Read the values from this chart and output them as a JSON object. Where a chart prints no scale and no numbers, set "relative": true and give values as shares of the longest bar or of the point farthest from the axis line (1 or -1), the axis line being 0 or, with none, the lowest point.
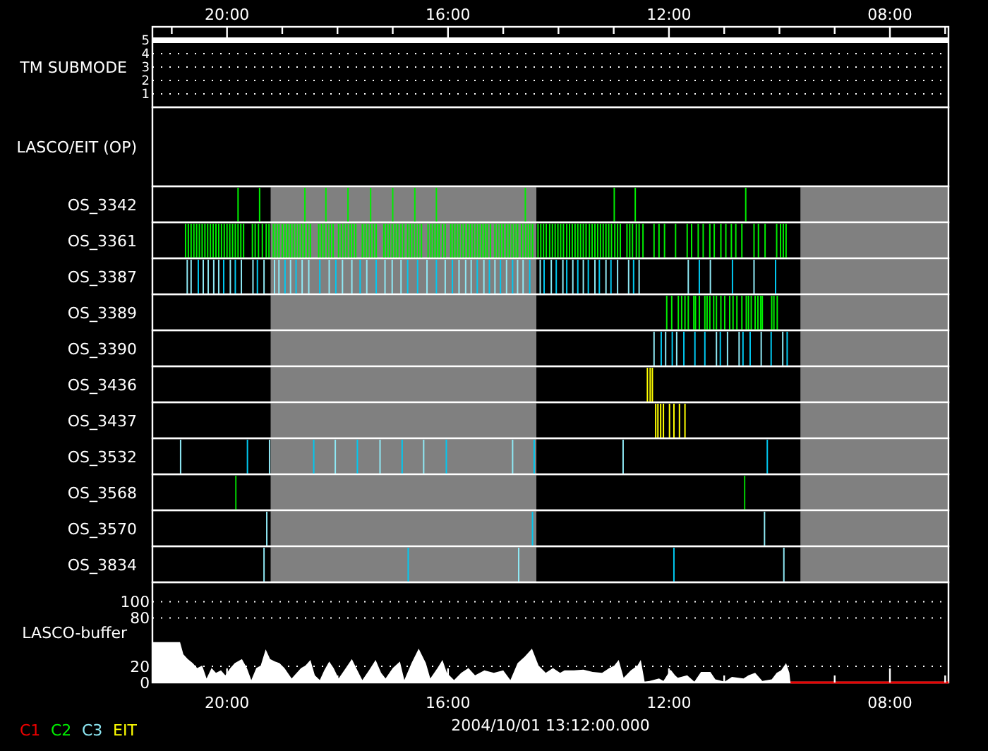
{
  "chart_data": [
    {
      "type": "line",
      "ylabel": "TM SUBMODE",
      "xlim": [
        21.35,
        6.94
      ],
      "xticks": [
        {
          "value": 21,
          "label": null
        },
        {
          "value": 20,
          "label": "20:00"
        },
        {
          "value": 19,
          "label": null
        },
        {
          "value": 18,
          "label": null
        },
        {
          "value": 17,
          "label": null
        },
        {
          "value": 16,
          "label": "16:00"
        },
        {
          "value": 15,
          "label": null
        },
        {
          "value": 14,
          "label": null
        },
        {
          "value": 13,
          "label": null
        },
        {
          "value": 12,
          "label": "12:00"
        },
        {
          "value": 11,
          "label": null
        },
        {
          "value": 10,
          "label": null
        },
        {
          "value": 9,
          "label": null
        },
        {
          "value": 8,
          "label": "08:00"
        },
        {
          "value": 7,
          "label": null
        }
      ],
      "ylim": [
        0,
        6
      ],
      "yticks": [
        1,
        2,
        3,
        4,
        5
      ],
      "grid": "y",
      "series": [
        {
          "color": "#ffffff",
          "x": [
            21.35,
            6.94
          ],
          "values": [
            5,
            5
          ]
        }
      ]
    },
    {
      "type": "other",
      "ylabel": "LASCO/EIT (OP)"
    },
    {
      "type": "bar",
      "ylabel": "OS_3342",
      "relative": true,
      "xlim": [
        21.35,
        6.94
      ],
      "bands": [
        {
          "axis": "x",
          "from": 19.21,
          "to": 14.4,
          "color": "#808080"
        },
        {
          "axis": "x",
          "from": 9.62,
          "to": 6.94,
          "color": "#808080"
        }
      ],
      "series": [
        {
          "color": "#00ee00",
          "x": [
            19.8,
            19.41,
            18.59,
            18.21,
            17.81,
            17.4,
            17.0,
            16.6,
            16.21,
            14.6,
            12.99,
            12.61,
            10.61
          ],
          "values": [
            1,
            1,
            1,
            1,
            1,
            1,
            1,
            1,
            1,
            1,
            1,
            1,
            1
          ]
        }
      ]
    },
    {
      "type": "bar",
      "ylabel": "OS_3361",
      "relative": true,
      "xlim": [
        21.35,
        6.94
      ],
      "bands": [
        {
          "axis": "x",
          "from": 19.21,
          "to": 14.4,
          "color": "#808080"
        },
        {
          "axis": "x",
          "from": 9.62,
          "to": 6.94,
          "color": "#808080"
        }
      ],
      "series": [
        {
          "color": "#00ee00",
          "x": [
            20.75,
            20.7,
            20.65,
            20.6,
            20.55,
            20.5,
            20.45,
            20.4,
            20.35,
            20.3,
            20.25,
            20.2,
            20.15,
            20.1,
            20.05,
            20.0,
            19.95,
            19.9,
            19.85,
            19.8,
            19.75,
            19.7,
            19.54,
            19.49,
            19.43,
            19.36,
            19.29,
            19.24,
            19.16,
            19.11,
            19.06,
            19.0,
            18.95,
            18.9,
            18.85,
            18.8,
            18.75,
            18.7,
            18.65,
            18.6,
            18.54,
            18.49,
            18.34,
            18.29,
            18.24,
            18.18,
            18.13,
            18.08,
            17.98,
            17.93,
            17.88,
            17.83,
            17.77,
            17.72,
            17.67,
            17.55,
            17.5,
            17.45,
            17.4,
            17.35,
            17.3,
            17.16,
            17.11,
            17.06,
            17.01,
            16.96,
            16.91,
            16.85,
            16.8,
            16.73,
            16.68,
            16.63,
            16.58,
            16.53,
            16.48,
            16.36,
            16.31,
            16.26,
            16.21,
            16.16,
            16.1,
            16.05
          ],
          "values": [
            1,
            1,
            1,
            1,
            1,
            1,
            1,
            1,
            1,
            1,
            1,
            1,
            1,
            1,
            1,
            1,
            1,
            1,
            1,
            1,
            1,
            1,
            1,
            1,
            1,
            1,
            1,
            1,
            1,
            1,
            1,
            1,
            1,
            1,
            1,
            1,
            1,
            1,
            1,
            1,
            1,
            1,
            1,
            1,
            1,
            1,
            1,
            1,
            1,
            1,
            1,
            1,
            1,
            1,
            1,
            1,
            1,
            1,
            1,
            1,
            1,
            1,
            1,
            1,
            1,
            1,
            1,
            1,
            1,
            1,
            1,
            1,
            1,
            1,
            1,
            1,
            1,
            1,
            1,
            1,
            1,
            1
          ]
        },
        {
          "color": "#00ee00",
          "x": [
            15.95,
            15.9,
            15.85,
            15.8,
            15.75,
            15.7,
            15.64,
            15.59,
            15.54,
            15.49,
            15.44,
            15.39,
            15.34,
            15.29,
            15.23,
            15.15,
            15.1,
            15.05,
            15.0,
            14.94,
            14.89,
            14.84,
            14.79,
            14.74,
            14.67,
            14.62,
            14.57,
            14.52,
            14.47,
            14.37,
            14.32,
            14.27,
            14.22,
            14.16,
            14.11,
            14.06,
            14.01,
            13.96,
            13.91,
            13.85,
            13.8,
            13.75,
            13.7,
            13.65,
            13.6,
            13.55,
            13.5,
            13.44,
            13.39,
            13.34,
            13.29,
            13.24,
            13.19,
            13.14,
            13.09,
            13.04,
            12.98,
            12.93,
            12.88,
            12.76,
            12.71,
            12.66,
            12.59,
            12.54,
            12.47
          ],
          "values": [
            1,
            1,
            1,
            1,
            1,
            1,
            1,
            1,
            1,
            1,
            1,
            1,
            1,
            1,
            1,
            1,
            1,
            1,
            1,
            1,
            1,
            1,
            1,
            1,
            1,
            1,
            1,
            1,
            1,
            1,
            1,
            1,
            1,
            1,
            1,
            1,
            1,
            1,
            1,
            1,
            1,
            1,
            1,
            1,
            1,
            1,
            1,
            1,
            1,
            1,
            1,
            1,
            1,
            1,
            1,
            1,
            1,
            1,
            1,
            1,
            1,
            1,
            1,
            1,
            1
          ]
        },
        {
          "color": "#00ee00",
          "x": [
            12.27,
            12.18,
            12.08,
            11.88,
            11.67,
            11.59,
            11.47,
            11.38,
            11.26,
            11.18,
            11.06,
            10.97,
            10.87,
            10.79,
            10.68,
            10.46,
            10.38,
            10.26,
            10.05,
            9.98,
            9.93,
            9.88
          ],
          "values": [
            1,
            1,
            1,
            1,
            1,
            1,
            1,
            1,
            1,
            1,
            1,
            1,
            1,
            1,
            1,
            1,
            1,
            1,
            1,
            1,
            1,
            1
          ]
        }
      ]
    },
    {
      "type": "bar",
      "ylabel": "OS_3387",
      "relative": true,
      "xlim": [
        21.35,
        6.94
      ],
      "bands": [
        {
          "axis": "x",
          "from": 19.21,
          "to": 14.4,
          "color": "#808080"
        },
        {
          "axis": "x",
          "from": 9.62,
          "to": 6.94,
          "color": "#808080"
        }
      ],
      "series": [
        {
          "color": "#8ee8f4",
          "x": [
            20.72,
            20.65,
            20.43,
            20.34,
            20.24,
            20.15,
            19.94,
            19.74,
            19.53,
            19.33,
            19.14,
            19.06,
            18.85,
            18.64,
            18.52,
            18.15,
            17.91,
            17.74,
            17.47,
            17.14,
            17.01,
            16.85,
            16.38,
            16.05,
            15.8,
            15.68,
            15.58,
            15.35,
            15.15,
            14.94,
            14.74,
            14.64,
            14.33,
            14.13,
            13.92,
            13.74,
            13.55,
            13.34,
            13.14,
            12.93,
            12.73,
            12.54,
            11.65,
            11.25,
            10.46
          ],
          "values": [
            1,
            1,
            1,
            1,
            1,
            1,
            1,
            1,
            1,
            1,
            1,
            1,
            1,
            1,
            1,
            1,
            1,
            1,
            1,
            1,
            1,
            1,
            1,
            1,
            1,
            1,
            1,
            1,
            1,
            1,
            1,
            1,
            1,
            1,
            1,
            1,
            1,
            1,
            1,
            1,
            1,
            1,
            1,
            1,
            1
          ]
        },
        {
          "color": "#00c8f0",
          "x": [
            20.52,
            20.06,
            19.85,
            19.45,
            18.95,
            18.75,
            18.32,
            18.03,
            17.59,
            17.3,
            16.73,
            16.55,
            16.21,
            15.92,
            15.47,
            15.25,
            15.05,
            14.83,
            14.52,
            14.26,
            14.04,
            13.85,
            13.65,
            13.46,
            13.26,
            13.05,
            12.64,
            11.45,
            10.85,
            10.07
          ],
          "values": [
            1,
            1,
            1,
            1,
            1,
            1,
            1,
            1,
            1,
            1,
            1,
            1,
            1,
            1,
            1,
            1,
            1,
            1,
            1,
            1,
            1,
            1,
            1,
            1,
            1,
            1,
            1,
            1,
            1,
            1
          ]
        }
      ]
    },
    {
      "type": "bar",
      "ylabel": "OS_3389",
      "relative": true,
      "xlim": [
        21.35,
        6.94
      ],
      "bands": [
        {
          "axis": "x",
          "from": 19.21,
          "to": 14.4,
          "color": "#808080"
        },
        {
          "axis": "x",
          "from": 9.62,
          "to": 6.94,
          "color": "#808080"
        }
      ],
      "series": [
        {
          "color": "#00ee00",
          "x": [
            12.04,
            11.95,
            11.83,
            11.77,
            11.71,
            11.65,
            11.55,
            11.52,
            11.45,
            11.35,
            11.31,
            11.26,
            11.19,
            11.14,
            11.06,
            10.99,
            10.9,
            10.84,
            10.77,
            10.68,
            10.6,
            10.56,
            10.51,
            10.44,
            10.39,
            10.34,
            10.31,
            10.14,
            10.1,
            10.04
          ],
          "values": [
            1,
            1,
            1,
            1,
            1,
            1,
            1,
            1,
            1,
            1,
            1,
            1,
            1,
            1,
            1,
            1,
            1,
            1,
            1,
            1,
            1,
            1,
            1,
            1,
            1,
            1,
            1,
            1,
            1,
            1
          ]
        }
      ]
    },
    {
      "type": "bar",
      "ylabel": "OS_3390",
      "relative": true,
      "xlim": [
        21.35,
        6.94
      ],
      "bands": [
        {
          "axis": "x",
          "from": 19.21,
          "to": 14.4,
          "color": "#808080"
        },
        {
          "axis": "x",
          "from": 9.62,
          "to": 6.94,
          "color": "#808080"
        }
      ],
      "series": [
        {
          "color": "#8ee8f4",
          "x": [
            12.27,
            12.06,
            11.86,
            11.14,
            10.94,
            10.73,
            10.33,
            9.94
          ],
          "values": [
            1,
            1,
            1,
            1,
            1,
            1,
            1,
            1
          ]
        },
        {
          "color": "#00c8f0",
          "x": [
            12.14,
            11.94,
            11.73,
            11.53,
            11.35,
            11.07,
            10.66,
            10.53,
            10.15,
            9.86
          ],
          "values": [
            1,
            1,
            1,
            1,
            1,
            1,
            1,
            1,
            1,
            1
          ]
        }
      ]
    },
    {
      "type": "bar",
      "ylabel": "OS_3436",
      "relative": true,
      "xlim": [
        21.35,
        6.94
      ],
      "bands": [
        {
          "axis": "x",
          "from": 19.21,
          "to": 14.4,
          "color": "#808080"
        },
        {
          "axis": "x",
          "from": 9.62,
          "to": 6.94,
          "color": "#808080"
        }
      ],
      "series": [
        {
          "color": "#ffff00",
          "x": [
            12.39,
            12.34,
            12.3
          ],
          "values": [
            1,
            1,
            1
          ]
        }
      ]
    },
    {
      "type": "bar",
      "ylabel": "OS_3437",
      "relative": true,
      "xlim": [
        21.35,
        6.94
      ],
      "bands": [
        {
          "axis": "x",
          "from": 19.21,
          "to": 14.4,
          "color": "#808080"
        },
        {
          "axis": "x",
          "from": 9.62,
          "to": 6.94,
          "color": "#808080"
        }
      ],
      "series": [
        {
          "color": "#ffff00",
          "x": [
            12.24,
            12.2,
            12.15,
            12.1,
            11.99,
            11.91,
            11.81,
            11.71
          ],
          "values": [
            1,
            1,
            1,
            1,
            1,
            1,
            1,
            1
          ]
        }
      ]
    },
    {
      "type": "bar",
      "ylabel": "OS_3532",
      "relative": true,
      "xlim": [
        21.35,
        6.94
      ],
      "bands": [
        {
          "axis": "x",
          "from": 19.21,
          "to": 14.4,
          "color": "#808080"
        },
        {
          "axis": "x",
          "from": 9.62,
          "to": 6.94,
          "color": "#808080"
        }
      ],
      "series": [
        {
          "color": "#8ee8f4",
          "x": [
            20.84,
            19.23,
            18.04,
            17.23,
            16.44,
            14.83,
            12.83
          ],
          "values": [
            1,
            1,
            1,
            1,
            1,
            1,
            1
          ]
        },
        {
          "color": "#00c8f0",
          "x": [
            19.63,
            18.43,
            17.64,
            16.83,
            16.03,
            14.44,
            10.22
          ],
          "values": [
            1,
            1,
            1,
            1,
            1,
            1,
            1
          ]
        }
      ]
    },
    {
      "type": "bar",
      "ylabel": "OS_3568",
      "relative": true,
      "xlim": [
        21.35,
        6.94
      ],
      "bands": [
        {
          "axis": "x",
          "from": 19.21,
          "to": 14.4,
          "color": "#808080"
        },
        {
          "axis": "x",
          "from": 9.62,
          "to": 6.94,
          "color": "#808080"
        }
      ],
      "series": [
        {
          "color": "#00d000",
          "x": [
            19.84,
            10.63
          ],
          "values": [
            1,
            1
          ]
        }
      ]
    },
    {
      "type": "bar",
      "ylabel": "OS_3570",
      "relative": true,
      "xlim": [
        21.35,
        6.94
      ],
      "bands": [
        {
          "axis": "x",
          "from": 19.21,
          "to": 14.4,
          "color": "#808080"
        },
        {
          "axis": "x",
          "from": 9.62,
          "to": 6.94,
          "color": "#808080"
        }
      ],
      "series": [
        {
          "color": "#8ee8f4",
          "x": [
            19.28,
            10.27
          ],
          "values": [
            1,
            1
          ]
        },
        {
          "color": "#00c8f0",
          "x": [
            14.47
          ],
          "values": [
            1
          ]
        }
      ]
    },
    {
      "type": "bar",
      "ylabel": "OS_3834",
      "relative": true,
      "xlim": [
        21.35,
        6.94
      ],
      "bands": [
        {
          "axis": "x",
          "from": 19.21,
          "to": 14.4,
          "color": "#808080"
        },
        {
          "axis": "x",
          "from": 9.62,
          "to": 6.94,
          "color": "#808080"
        }
      ],
      "series": [
        {
          "color": "#8ee8f4",
          "x": [
            19.33,
            14.72,
            9.92
          ],
          "values": [
            1,
            1,
            1
          ]
        },
        {
          "color": "#00c8f0",
          "x": [
            16.72,
            11.91
          ],
          "values": [
            1,
            1
          ]
        }
      ]
    },
    {
      "type": "area",
      "ylabel": "LASCO-buffer",
      "xlabel": "2004/10/01 13:12:00.000",
      "xlim": [
        21.35,
        6.94
      ],
      "xticks": [
        {
          "value": 21,
          "label": null
        },
        {
          "value": 20,
          "label": "20:00"
        },
        {
          "value": 19,
          "label": null
        },
        {
          "value": 18,
          "label": null
        },
        {
          "value": 17,
          "label": null
        },
        {
          "value": 16,
          "label": "16:00"
        },
        {
          "value": 15,
          "label": null
        },
        {
          "value": 14,
          "label": null
        },
        {
          "value": 13,
          "label": null
        },
        {
          "value": 12,
          "label": "12:00"
        },
        {
          "value": 11,
          "label": null
        },
        {
          "value": 10,
          "label": null
        },
        {
          "value": 9,
          "label": null
        },
        {
          "value": 8,
          "label": "08:00"
        },
        {
          "value": 7,
          "label": null
        }
      ],
      "ylim": [
        0,
        124
      ],
      "yticks": [
        0,
        20,
        80,
        100
      ],
      "grid": "y",
      "series": [
        {
          "color": "#ffffff",
          "x": [
            21.35,
            20.85,
            20.79,
            20.71,
            20.62,
            20.54,
            20.45,
            20.37,
            20.28,
            20.2,
            20.11,
            20.03,
            19.94,
            19.86,
            19.73,
            19.64,
            19.56,
            19.47,
            19.39,
            19.3,
            19.22,
            19.13,
            19.05,
            18.96,
            18.83,
            18.66,
            18.58,
            18.49,
            18.41,
            18.32,
            18.24,
            18.15,
            18.07,
            17.98,
            17.85,
            17.74,
            17.64,
            17.55,
            17.43,
            17.31,
            17.21,
            17.13,
            17.0,
            16.87,
            16.79,
            16.66,
            16.53,
            16.4,
            16.32,
            16.19,
            16.1,
            16.02,
            15.89,
            15.76,
            15.63,
            15.51,
            15.34,
            15.17,
            15.0,
            14.87,
            14.74,
            14.61,
            14.48,
            14.36,
            14.23,
            14.1,
            13.97,
            13.89,
            13.72,
            13.55,
            13.38,
            13.21,
            13.08,
            12.99,
            12.91,
            12.82,
            12.69,
            12.57,
            12.51,
            12.44,
            12.35,
            12.18,
            12.1,
            11.97,
            11.89,
            11.84,
            11.67,
            11.54,
            11.42,
            11.25,
            11.16,
            10.99,
            10.86,
            10.65,
            10.56,
            10.44,
            10.31,
            10.14,
            10.05,
            9.97,
            9.88,
            9.82,
            9.8
          ],
          "values": [
            50,
            50,
            35,
            29,
            24,
            18,
            21,
            5,
            18,
            12,
            15,
            9,
            18,
            24,
            29,
            18,
            3,
            18,
            21,
            41,
            29,
            26,
            24,
            18,
            5,
            18,
            21,
            28,
            9,
            3,
            15,
            26,
            18,
            5,
            18,
            29,
            15,
            3,
            15,
            28,
            12,
            5,
            18,
            26,
            3,
            24,
            42,
            24,
            5,
            18,
            28,
            12,
            3,
            12,
            18,
            9,
            15,
            12,
            15,
            3,
            24,
            32,
            42,
            21,
            12,
            18,
            12,
            15,
            15,
            16,
            13,
            12,
            18,
            21,
            28,
            6,
            15,
            21,
            28,
            1,
            2,
            5,
            2,
            16,
            9,
            6,
            9,
            1,
            13,
            13,
            4,
            1,
            7,
            5,
            9,
            12,
            2,
            4,
            12,
            15,
            24,
            12,
            0
          ]
        },
        {
          "type": "line",
          "color": "#ee0000",
          "x": [
            9.8,
            6.94
          ],
          "values": [
            0,
            0
          ]
        }
      ]
    },
    {
      "type": "other",
      "categories": [
        "C1",
        "C2",
        "C3",
        "EIT"
      ],
      "colors": [
        "#ee0000",
        "#00ee00",
        "#8ee8f4",
        "#ffff00"
      ]
    }
  ]
}
